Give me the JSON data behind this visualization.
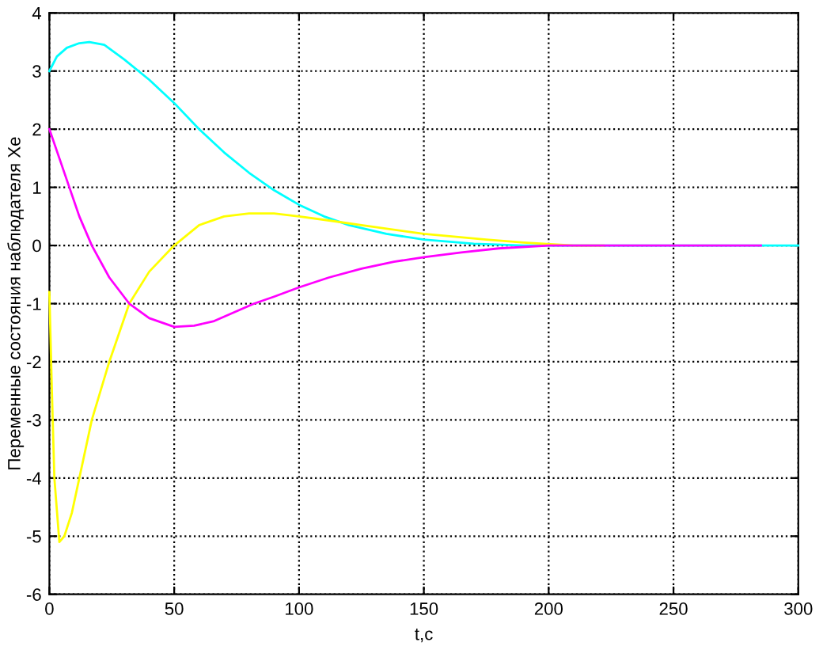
{
  "chart_data": {
    "type": "line",
    "xlabel": "t,c",
    "ylabel": "Переменные состояния наблюдателя Xe",
    "series": [
      {
        "color": "#00ffff",
        "x": [
          0,
          3,
          7,
          12,
          16,
          22,
          30,
          40,
          50,
          60,
          70,
          80,
          90,
          100,
          110,
          120,
          135,
          150,
          170,
          190,
          200,
          250,
          300
        ],
        "values": [
          3.0,
          3.25,
          3.4,
          3.48,
          3.5,
          3.45,
          3.2,
          2.85,
          2.45,
          2.0,
          1.6,
          1.25,
          0.95,
          0.7,
          0.5,
          0.35,
          0.2,
          0.1,
          0.03,
          0.0,
          0.0,
          0.0,
          0.0
        ]
      },
      {
        "color": "#ffff00",
        "x": [
          0,
          1,
          2,
          4,
          6,
          9,
          12,
          17,
          24,
          32,
          40,
          50,
          60,
          70,
          80,
          90,
          100,
          112,
          125,
          150,
          175,
          190,
          210,
          222
        ],
        "values": [
          -0.8,
          -2.5,
          -4.0,
          -5.1,
          -5.0,
          -4.6,
          -4.0,
          -3.0,
          -2.0,
          -1.0,
          -0.45,
          0.0,
          0.35,
          0.5,
          0.55,
          0.55,
          0.5,
          0.43,
          0.35,
          0.2,
          0.1,
          0.05,
          0.0,
          0.0
        ]
      },
      {
        "color": "#ff00ff",
        "x": [
          0,
          4,
          8,
          12,
          17,
          24,
          32,
          40,
          50,
          58,
          66,
          74,
          82,
          90,
          100,
          112,
          125,
          138,
          150,
          165,
          180,
          200,
          240,
          285
        ],
        "values": [
          2.0,
          1.5,
          1.0,
          0.5,
          0.0,
          -0.55,
          -1.0,
          -1.25,
          -1.4,
          -1.38,
          -1.3,
          -1.15,
          -1.0,
          -0.88,
          -0.72,
          -0.55,
          -0.4,
          -0.28,
          -0.2,
          -0.12,
          -0.05,
          0.0,
          0.0,
          0.0
        ]
      }
    ],
    "xlim": [
      0,
      300
    ],
    "xticks": [
      0,
      50,
      100,
      150,
      200,
      250,
      300
    ],
    "ylim": [
      -6,
      4
    ],
    "yticks": [
      -6,
      -5,
      -4,
      -3,
      -2,
      -1,
      0,
      1,
      2,
      3,
      4
    ],
    "grid": true,
    "line_style": "solid",
    "marker": "none"
  }
}
